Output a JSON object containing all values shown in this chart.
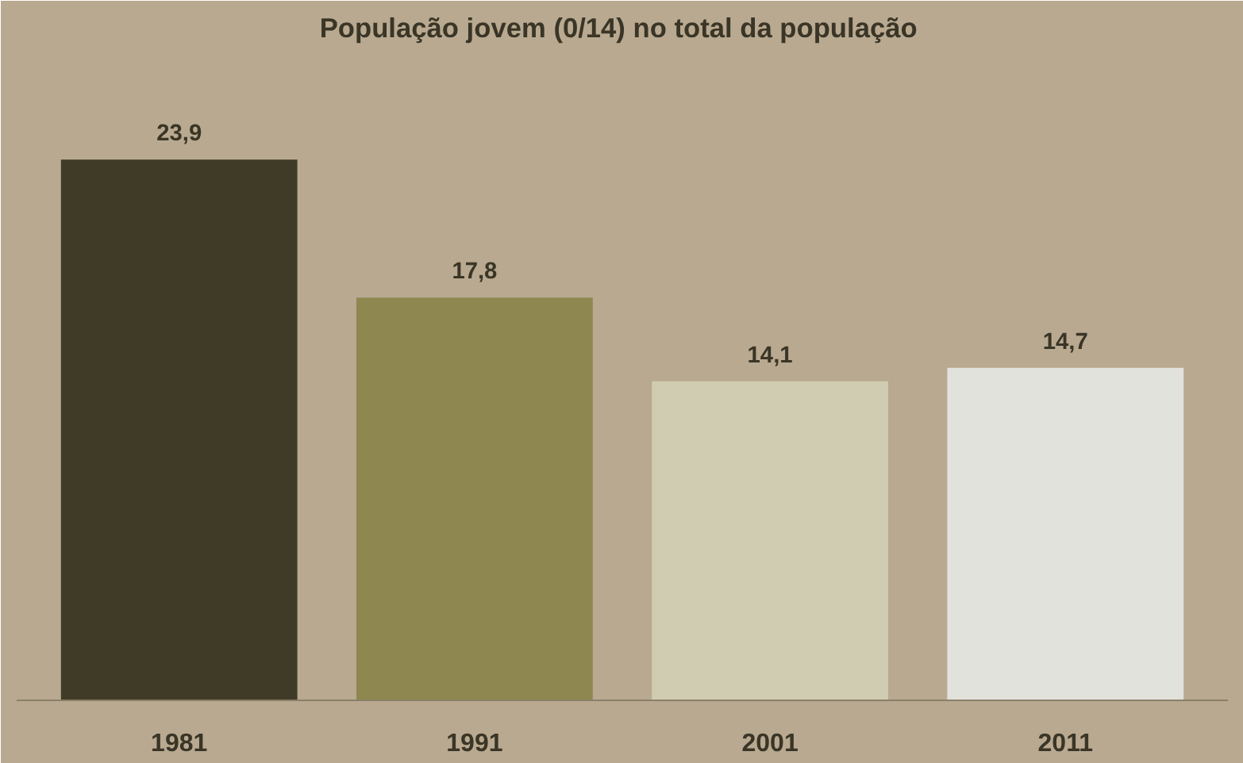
{
  "chart_data": {
    "type": "bar",
    "title": "População jovem  (0/14) no total da população",
    "categories": [
      "1981",
      "1991",
      "2001",
      "2011"
    ],
    "values": [
      23.9,
      17.8,
      14.1,
      14.7
    ],
    "value_labels": [
      "23,9",
      "17,8",
      "14,1",
      "14,7"
    ],
    "colors": [
      "#3f3b26",
      "#8e8850",
      "#cfccb2",
      "#e2e2dc"
    ],
    "grid": false
  }
}
